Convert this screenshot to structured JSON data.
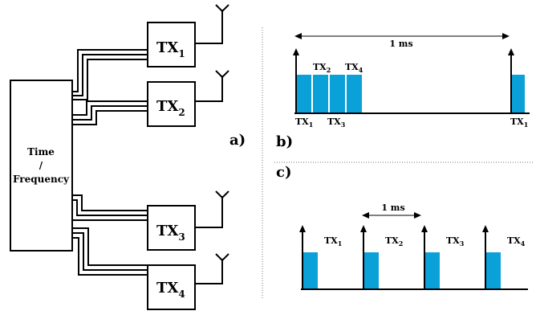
{
  "panel_a": {
    "label": "a)",
    "source_box": {
      "line1": "Time",
      "line2": "/",
      "line3": "Frequency"
    },
    "transmitters": [
      {
        "name": "TX",
        "sub": "1"
      },
      {
        "name": "TX",
        "sub": "2"
      },
      {
        "name": "TX",
        "sub": "3"
      },
      {
        "name": "TX",
        "sub": "4"
      }
    ]
  },
  "panel_b": {
    "label": "b)",
    "period_label": "1 ms",
    "top_labels": [
      {
        "name": "TX",
        "sub": "2"
      },
      {
        "name": "TX",
        "sub": "4"
      }
    ],
    "bottom_labels": [
      {
        "name": "TX",
        "sub": "1"
      },
      {
        "name": "TX",
        "sub": "3"
      },
      {
        "name": "TX",
        "sub": "1"
      }
    ]
  },
  "panel_c": {
    "label": "c)",
    "period_label": "1 ms",
    "pulse_labels": [
      {
        "name": "TX",
        "sub": "1"
      },
      {
        "name": "TX",
        "sub": "2"
      },
      {
        "name": "TX",
        "sub": "3"
      },
      {
        "name": "TX",
        "sub": "4"
      }
    ]
  },
  "colors": {
    "pulse": "#0aa0d8",
    "line": "#000000",
    "divider": "#777777"
  }
}
